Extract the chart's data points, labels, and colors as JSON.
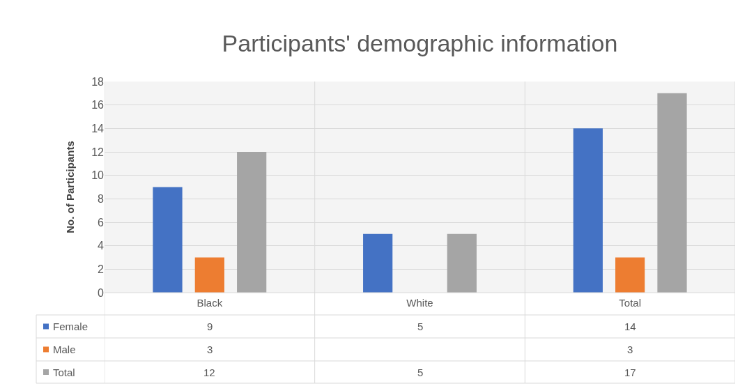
{
  "chart_data": {
    "type": "bar",
    "title": "Participants' demographic information",
    "ylabel": "No. of Participants",
    "categories": [
      "Black",
      "White",
      "Total"
    ],
    "series": [
      {
        "name": "Female",
        "color": "#4472c4",
        "values": [
          9,
          5,
          14
        ]
      },
      {
        "name": "Male",
        "color": "#ed7d31",
        "values": [
          3,
          null,
          3
        ]
      },
      {
        "name": "Total",
        "color": "#a5a5a5",
        "values": [
          12,
          5,
          17
        ]
      }
    ],
    "ylim": [
      0,
      18
    ],
    "yticks": [
      0,
      2,
      4,
      6,
      8,
      10,
      12,
      14,
      16,
      18
    ],
    "grid": "y",
    "legend": "bottom",
    "data_labels": true
  }
}
